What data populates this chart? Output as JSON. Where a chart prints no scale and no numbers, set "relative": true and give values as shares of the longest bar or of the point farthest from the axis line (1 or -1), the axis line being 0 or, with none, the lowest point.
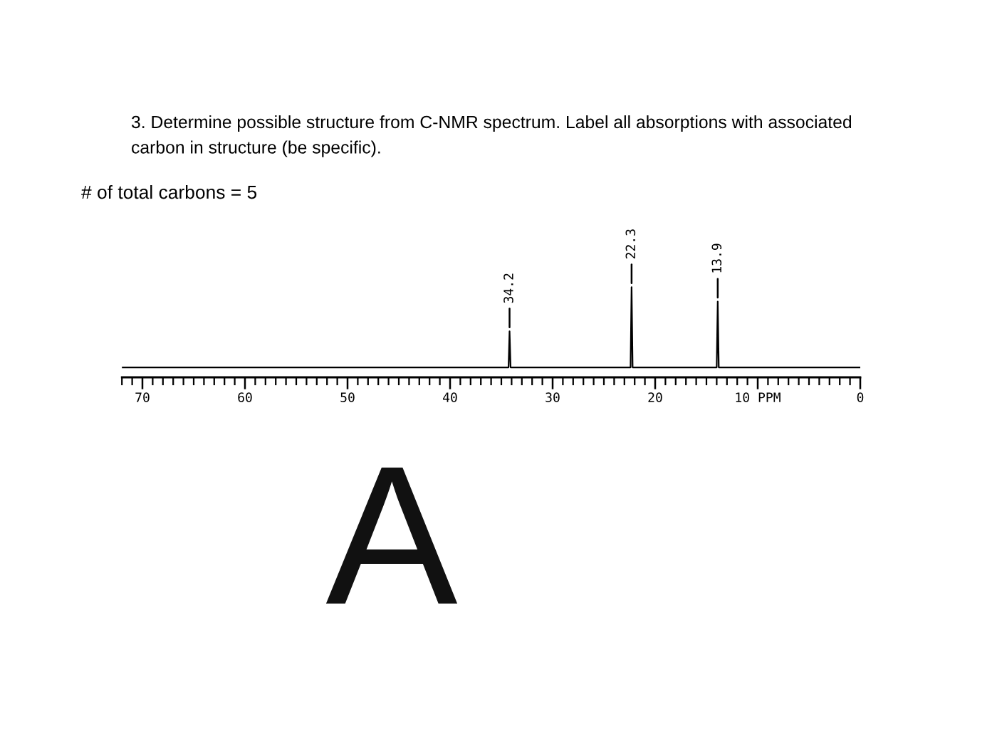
{
  "chart_data": {
    "type": "line",
    "title": "3. Determine possible structure from C-NMR spectrum. Label all absorptions with associated\ncarbon in structure (be specific).",
    "subtitle": "# of total carbons = 5",
    "annotations": [
      {
        "text": "34.2",
        "x": 34.2,
        "y": 0.51
      },
      {
        "text": "22.3",
        "x": 22.3,
        "y": 1
      },
      {
        "text": "13.9",
        "x": 13.9,
        "y": 0.84
      },
      "A"
    ],
    "relative": true,
    "series": [
      {
        "color": "#000000",
        "x": [
          72,
          34.3,
          34.2,
          34.1,
          22.4,
          22.3,
          22.2,
          14.0,
          13.9,
          13.8,
          0
        ],
        "values": [
          0.11,
          0.11,
          0.51,
          0.11,
          0.11,
          1,
          0.11,
          0.11,
          0.84,
          0.11,
          0.11
        ]
      }
    ],
    "xlim": [
      72,
      0
    ],
    "xticks": [
      {
        "value": 72,
        "label": null
      },
      {
        "value": 71,
        "label": null
      },
      70,
      {
        "value": 69,
        "label": null
      },
      {
        "value": 68,
        "label": null
      },
      {
        "value": 67,
        "label": null
      },
      {
        "value": 66,
        "label": null
      },
      {
        "value": 65,
        "label": null
      },
      {
        "value": 64,
        "label": null
      },
      {
        "value": 63,
        "label": null
      },
      {
        "value": 62,
        "label": null
      },
      {
        "value": 61,
        "label": null
      },
      60,
      {
        "value": 59,
        "label": null
      },
      {
        "value": 58,
        "label": null
      },
      {
        "value": 57,
        "label": null
      },
      {
        "value": 56,
        "label": null
      },
      {
        "value": 55,
        "label": null
      },
      {
        "value": 54,
        "label": null
      },
      {
        "value": 53,
        "label": null
      },
      {
        "value": 52,
        "label": null
      },
      {
        "value": 51,
        "label": null
      },
      50,
      {
        "value": 49,
        "label": null
      },
      {
        "value": 48,
        "label": null
      },
      {
        "value": 47,
        "label": null
      },
      {
        "value": 46,
        "label": null
      },
      {
        "value": 45,
        "label": null
      },
      {
        "value": 44,
        "label": null
      },
      {
        "value": 43,
        "label": null
      },
      {
        "value": 42,
        "label": null
      },
      {
        "value": 41,
        "label": null
      },
      40,
      {
        "value": 39,
        "label": null
      },
      {
        "value": 38,
        "label": null
      },
      {
        "value": 37,
        "label": null
      },
      {
        "value": 36,
        "label": null
      },
      {
        "value": 35,
        "label": null
      },
      {
        "value": 34,
        "label": null
      },
      {
        "value": 33,
        "label": null
      },
      {
        "value": 32,
        "label": null
      },
      {
        "value": 31,
        "label": null
      },
      30,
      {
        "value": 29,
        "label": null
      },
      {
        "value": 28,
        "label": null
      },
      {
        "value": 27,
        "label": null
      },
      {
        "value": 26,
        "label": null
      },
      {
        "value": 25,
        "label": null
      },
      {
        "value": 24,
        "label": null
      },
      {
        "value": 23,
        "label": null
      },
      {
        "value": 22,
        "label": null
      },
      {
        "value": 21,
        "label": null
      },
      20,
      {
        "value": 19,
        "label": null
      },
      {
        "value": 18,
        "label": null
      },
      {
        "value": 17,
        "label": null
      },
      {
        "value": 16,
        "label": null
      },
      {
        "value": 15,
        "label": null
      },
      {
        "value": 14,
        "label": null
      },
      {
        "value": 13,
        "label": null
      },
      {
        "value": 12,
        "label": null
      },
      {
        "value": 11,
        "label": null
      },
      {
        "value": 10,
        "label": "10 PPM"
      },
      {
        "value": 9,
        "label": null
      },
      {
        "value": 8,
        "label": null
      },
      {
        "value": 7,
        "label": null
      },
      {
        "value": 6,
        "label": null
      },
      {
        "value": 5,
        "label": null
      },
      {
        "value": 4,
        "label": null
      },
      {
        "value": 3,
        "label": null
      },
      {
        "value": 2,
        "label": null
      },
      {
        "value": 1,
        "label": null
      },
      0
    ]
  }
}
